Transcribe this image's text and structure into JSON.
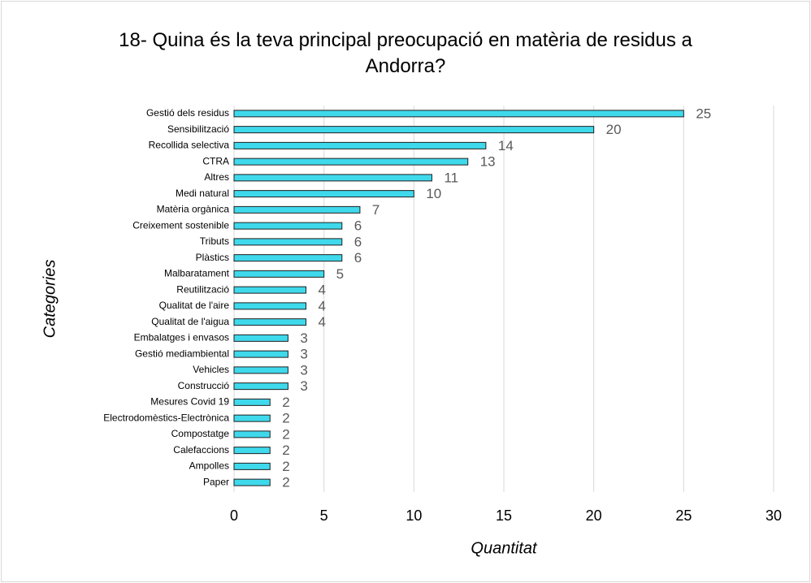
{
  "chart_data": {
    "type": "bar",
    "orientation": "horizontal",
    "title": "18- Quina és la teva principal preocupació en matèria de residus a Andorra?",
    "xlabel": "Quantitat",
    "ylabel": "Categories",
    "categories": [
      "Gestió dels residus",
      "Sensibilització",
      "Recollida selectiva",
      "CTRA",
      "Altres",
      "Medi natural",
      "Matèria orgànica",
      "Creixement sostenible",
      "Tributs",
      "Plàstics",
      "Malbaratament",
      "Reutilització",
      "Qualitat de l'aire",
      "Qualitat de l'aigua",
      "Embalatges i envasos",
      "Gestió mediambiental",
      "Vehicles",
      "Construcció",
      "Mesures Covid 19",
      "Electrodomèstics-Electrònica",
      "Compostatge",
      "Calefaccions",
      "Ampolles",
      "Paper"
    ],
    "values": [
      25,
      20,
      14,
      13,
      11,
      10,
      7,
      6,
      6,
      6,
      5,
      4,
      4,
      4,
      3,
      3,
      3,
      3,
      2,
      2,
      2,
      2,
      2,
      2
    ],
    "color": "#3fd9ec",
    "xlim": [
      0,
      30
    ],
    "xticks": [
      0,
      5,
      10,
      15,
      20,
      25,
      30
    ],
    "grid": true
  }
}
